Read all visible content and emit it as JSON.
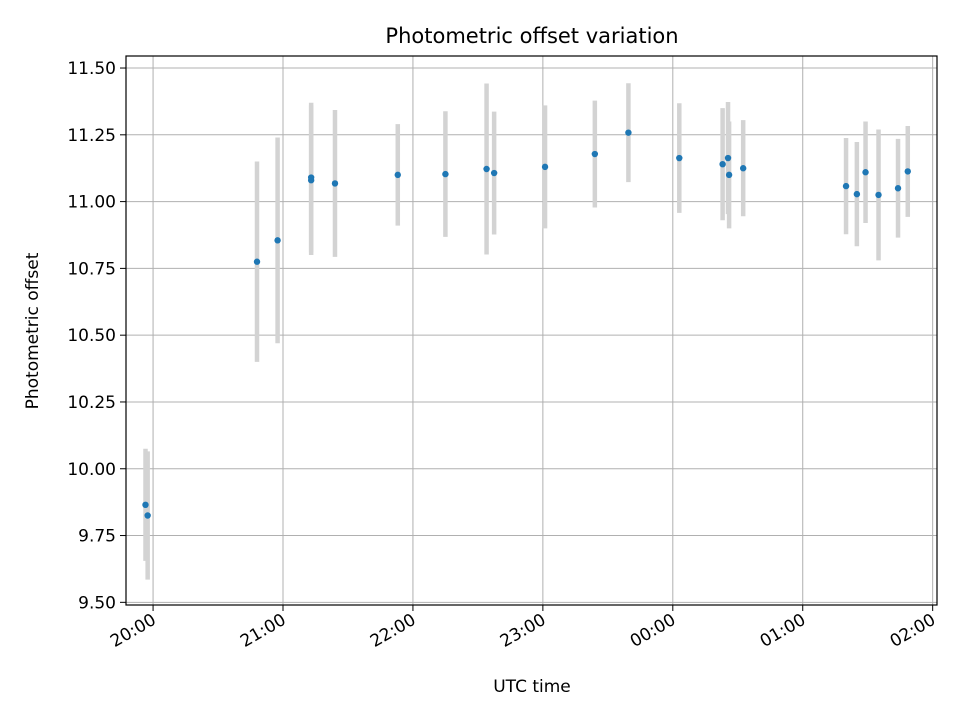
{
  "chart_data": {
    "type": "scatter",
    "title": "Photometric offset variation",
    "xlabel": "UTC time",
    "ylabel": "Photometric offset",
    "x_tick_labels": [
      "20:00",
      "21:00",
      "22:00",
      "23:00",
      "00:00",
      "01:00",
      "02:00"
    ],
    "y_tick_labels": [
      "9.50",
      "9.75",
      "10.00",
      "10.25",
      "10.50",
      "10.75",
      "11.00",
      "11.25",
      "11.50"
    ],
    "x_unit": "minutes after 20:00 UTC",
    "xlim": [
      -12.5,
      362
    ],
    "ylim": [
      9.49,
      11.545
    ],
    "grid": true,
    "error_bar_color": "#d3d3d3",
    "point_color": "#1f77b4",
    "points": [
      {
        "x": -3.5,
        "y": 9.865,
        "err": 0.21
      },
      {
        "x": -2.5,
        "y": 9.825,
        "err": 0.24
      },
      {
        "x": 48,
        "y": 10.775,
        "err": 0.375
      },
      {
        "x": 57.5,
        "y": 10.855,
        "err": 0.385
      },
      {
        "x": 73,
        "y": 11.08,
        "err": 0.28
      },
      {
        "x": 73,
        "y": 11.09,
        "err": 0.28
      },
      {
        "x": 84,
        "y": 11.068,
        "err": 0.275
      },
      {
        "x": 113,
        "y": 11.1,
        "err": 0.19
      },
      {
        "x": 135,
        "y": 11.103,
        "err": 0.235
      },
      {
        "x": 154,
        "y": 11.122,
        "err": 0.32
      },
      {
        "x": 157.5,
        "y": 11.107,
        "err": 0.23
      },
      {
        "x": 181,
        "y": 11.13,
        "err": 0.23
      },
      {
        "x": 204,
        "y": 11.178,
        "err": 0.2
      },
      {
        "x": 219.5,
        "y": 11.258,
        "err": 0.185
      },
      {
        "x": 243,
        "y": 11.163,
        "err": 0.205
      },
      {
        "x": 263,
        "y": 11.14,
        "err": 0.21
      },
      {
        "x": 265.5,
        "y": 11.163,
        "err": 0.21
      },
      {
        "x": 266,
        "y": 11.1,
        "err": 0.2
      },
      {
        "x": 272.5,
        "y": 11.125,
        "err": 0.18
      },
      {
        "x": 320,
        "y": 11.058,
        "err": 0.18
      },
      {
        "x": 325,
        "y": 11.028,
        "err": 0.195
      },
      {
        "x": 329,
        "y": 11.11,
        "err": 0.19
      },
      {
        "x": 335,
        "y": 11.025,
        "err": 0.245
      },
      {
        "x": 344,
        "y": 11.05,
        "err": 0.185
      },
      {
        "x": 348.5,
        "y": 11.113,
        "err": 0.17
      }
    ]
  }
}
